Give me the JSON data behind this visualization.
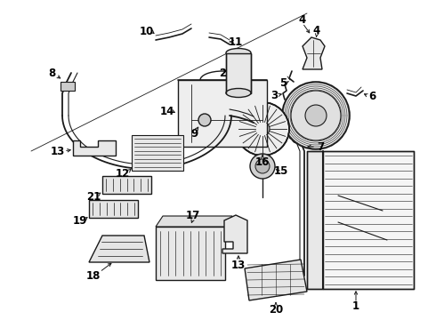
{
  "bg_color": "#ffffff",
  "line_color": "#1a1a1a",
  "label_color": "#000000",
  "label_fontsize": 8.5,
  "figsize": [
    4.9,
    3.6
  ],
  "dpi": 100
}
